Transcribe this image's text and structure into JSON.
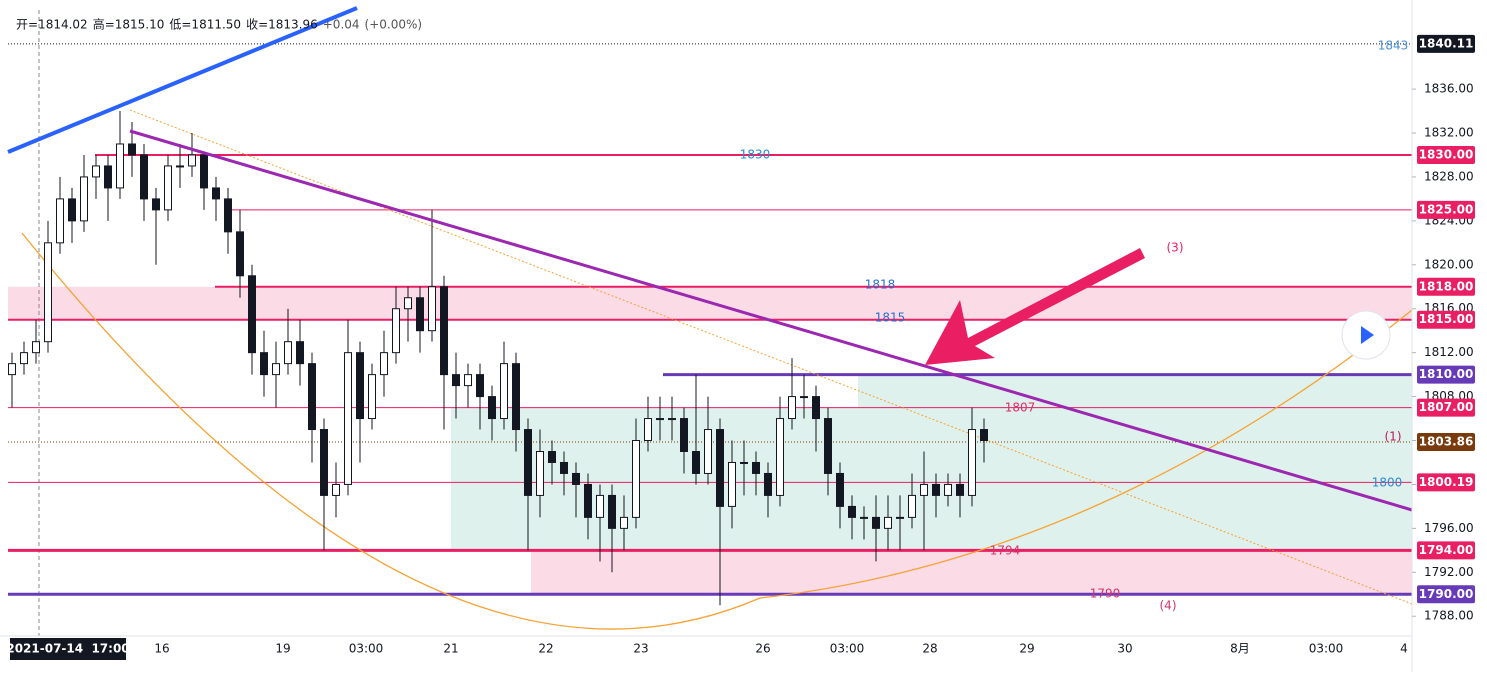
{
  "chart_data": {
    "type": "candlestick",
    "header": [
      "开=1814.02",
      "高=1815.10",
      "低=1811.50",
      "收=1813.96",
      "+0.04",
      "(+0.00%)"
    ],
    "ylim": [
      1786.2,
      1843.2
    ],
    "yticks": [
      {
        "value": 1788,
        "label": "1788.00"
      },
      {
        "value": 1792,
        "label": "1792.00"
      },
      {
        "value": 1796,
        "label": "1796.00"
      },
      {
        "value": 1800,
        "label": "1800.00"
      },
      {
        "value": 1804,
        "label": "1804.00"
      },
      {
        "value": 1808,
        "label": "1808.00"
      },
      {
        "value": 1812,
        "label": "1812.00"
      },
      {
        "value": 1816,
        "label": "1816.00"
      },
      {
        "value": 1820,
        "label": "1820.00"
      },
      {
        "value": 1824,
        "label": "1824.00"
      },
      {
        "value": 1828,
        "label": "1828.00"
      },
      {
        "value": 1832,
        "label": "1832.00"
      },
      {
        "value": 1836,
        "label": "1836.00"
      }
    ],
    "x_labels": [
      "2021-07-14  17:00",
      "16",
      "19",
      "03:00",
      "21",
      "22",
      "23",
      "26",
      "03:00",
      "28",
      "29",
      "30",
      "8月",
      "03:00",
      "4"
    ],
    "zones": [
      {
        "from": 1815,
        "to": 1818,
        "color": "#fbdbe6"
      },
      {
        "from": 1794,
        "to": 1810,
        "color": "#dff1ec"
      },
      {
        "from": 1794,
        "to": 1807,
        "color": "#dff1ec"
      },
      {
        "from": 1790,
        "to": 1794,
        "color": "#fbdbe6"
      }
    ],
    "price_tags": [
      {
        "value": 1840.11,
        "label": "1840.11",
        "color": "#131722",
        "style": "dotted"
      },
      {
        "value": 1830,
        "label": "1830.00",
        "color": "#e91e63",
        "style": "solid"
      },
      {
        "value": 1825,
        "label": "1825.00",
        "color": "#e91e63",
        "style": "solid"
      },
      {
        "value": 1818,
        "label": "1818.00",
        "color": "#e91e63",
        "style": "solid"
      },
      {
        "value": 1815,
        "label": "1815.00",
        "color": "#e91e63",
        "style": "solid"
      },
      {
        "value": 1810,
        "label": "1810.00",
        "color": "#673ab7",
        "style": "solid"
      },
      {
        "value": 1807,
        "label": "1807.00",
        "color": "#e91e63",
        "style": "solid"
      },
      {
        "value": 1803.86,
        "label": "1803.86",
        "color": "#7a3a0c",
        "style": "dotted"
      },
      {
        "value": 1800.19,
        "label": "1800.19",
        "color": "#e91e63",
        "style": "solid"
      },
      {
        "value": 1794,
        "label": "1794.00",
        "color": "#e91e63",
        "style": "solid"
      },
      {
        "value": 1790,
        "label": "1790.00",
        "color": "#673ab7",
        "style": "solid"
      }
    ],
    "annotations": [
      {
        "text": "1830",
        "color": "#2a8bd5"
      },
      {
        "text": "1818",
        "color": "#2a6fd5"
      },
      {
        "text": "1815",
        "color": "#2a6fd5"
      },
      {
        "text": "1807",
        "color": "#d6336c"
      },
      {
        "text": "(1)",
        "color": "#c2185b"
      },
      {
        "text": "1800",
        "color": "#2a8bd5"
      },
      {
        "text": "1794",
        "color": "#d6336c"
      },
      {
        "text": "1790",
        "color": "#d6336c"
      },
      {
        "text": "(4)",
        "color": "#d6336c"
      },
      {
        "text": "(3)",
        "color": "#e91e63"
      },
      {
        "text": "1843",
        "color": "#4a90d9"
      }
    ],
    "ohlc": [
      [
        1810,
        1812,
        1807,
        1811
      ],
      [
        1811,
        1813,
        1810,
        1812
      ],
      [
        1812,
        1815,
        1811,
        1813
      ],
      [
        1813,
        1824,
        1812,
        1822
      ],
      [
        1822,
        1828,
        1821,
        1826
      ],
      [
        1826,
        1827,
        1822,
        1824
      ],
      [
        1824,
        1830,
        1823,
        1828
      ],
      [
        1828,
        1830,
        1826,
        1829
      ],
      [
        1829,
        1830,
        1824,
        1827
      ],
      [
        1827,
        1834,
        1826,
        1831
      ],
      [
        1831,
        1833,
        1828,
        1830
      ],
      [
        1830,
        1831,
        1824,
        1826
      ],
      [
        1826,
        1827,
        1820,
        1825
      ],
      [
        1825,
        1830,
        1824,
        1829
      ],
      [
        1829,
        1831,
        1827,
        1829
      ],
      [
        1829,
        1832,
        1828,
        1830
      ],
      [
        1830,
        1830,
        1825,
        1827
      ],
      [
        1827,
        1828,
        1824,
        1826
      ],
      [
        1826,
        1827,
        1821,
        1823
      ],
      [
        1823,
        1825,
        1817,
        1819
      ],
      [
        1819,
        1820,
        1810,
        1812
      ],
      [
        1812,
        1814,
        1808,
        1810
      ],
      [
        1810,
        1813,
        1807,
        1811
      ],
      [
        1811,
        1816,
        1810,
        1813
      ],
      [
        1813,
        1815,
        1809,
        1811
      ],
      [
        1811,
        1812,
        1802,
        1805
      ],
      [
        1805,
        1806,
        1794,
        1799
      ],
      [
        1799,
        1802,
        1797,
        1800
      ],
      [
        1800,
        1815,
        1799,
        1812
      ],
      [
        1812,
        1813,
        1802,
        1806
      ],
      [
        1806,
        1811,
        1805,
        1810
      ],
      [
        1810,
        1814,
        1808,
        1812
      ],
      [
        1812,
        1818,
        1811,
        1816
      ],
      [
        1816,
        1818,
        1813,
        1817
      ],
      [
        1817,
        1818,
        1812,
        1814
      ],
      [
        1814,
        1825,
        1813,
        1818
      ],
      [
        1818,
        1819,
        1805,
        1810
      ],
      [
        1810,
        1812,
        1806,
        1809
      ],
      [
        1809,
        1811,
        1807,
        1810
      ],
      [
        1810,
        1811,
        1805,
        1808
      ],
      [
        1808,
        1809,
        1804,
        1806
      ],
      [
        1806,
        1813,
        1805,
        1811
      ],
      [
        1811,
        1812,
        1803,
        1805
      ],
      [
        1805,
        1806,
        1794,
        1799
      ],
      [
        1799,
        1805,
        1797,
        1803
      ],
      [
        1803,
        1804,
        1800,
        1802
      ],
      [
        1802,
        1803,
        1799,
        1801
      ],
      [
        1801,
        1802,
        1797,
        1800
      ],
      [
        1800,
        1801,
        1795,
        1797
      ],
      [
        1797,
        1800,
        1793,
        1799
      ],
      [
        1799,
        1800,
        1792,
        1796
      ],
      [
        1796,
        1799,
        1794,
        1797
      ],
      [
        1797,
        1806,
        1796,
        1804
      ],
      [
        1804,
        1808,
        1803,
        1806
      ],
      [
        1806,
        1808,
        1804,
        1806
      ],
      [
        1806,
        1808,
        1804,
        1806
      ],
      [
        1806,
        1807,
        1801,
        1803
      ],
      [
        1803,
        1810,
        1800,
        1801
      ],
      [
        1801,
        1808,
        1800,
        1805
      ],
      [
        1805,
        1806,
        1789,
        1798
      ],
      [
        1798,
        1804,
        1796,
        1802
      ],
      [
        1802,
        1804,
        1799,
        1802
      ],
      [
        1802,
        1803,
        1799,
        1801
      ],
      [
        1801,
        1802,
        1797,
        1799
      ],
      [
        1799,
        1808,
        1798,
        1806
      ],
      [
        1806,
        1811.5,
        1805,
        1808
      ],
      [
        1808,
        1810,
        1806,
        1808
      ],
      [
        1808,
        1809,
        1803,
        1806
      ],
      [
        1806,
        1807,
        1799,
        1801
      ],
      [
        1801,
        1802,
        1796,
        1798
      ],
      [
        1798,
        1799,
        1795,
        1797
      ],
      [
        1797,
        1798,
        1795,
        1797
      ],
      [
        1797,
        1799,
        1793,
        1796
      ],
      [
        1796,
        1799,
        1794,
        1797
      ],
      [
        1797,
        1799,
        1794,
        1797
      ],
      [
        1797,
        1801,
        1796,
        1799
      ],
      [
        1799,
        1803,
        1794,
        1800
      ],
      [
        1800,
        1801,
        1797,
        1799
      ],
      [
        1799,
        1801,
        1798,
        1800
      ],
      [
        1800,
        1801,
        1797,
        1799
      ],
      [
        1799,
        1807,
        1798,
        1805
      ],
      [
        1805,
        1806,
        1802,
        1804
      ]
    ]
  }
}
